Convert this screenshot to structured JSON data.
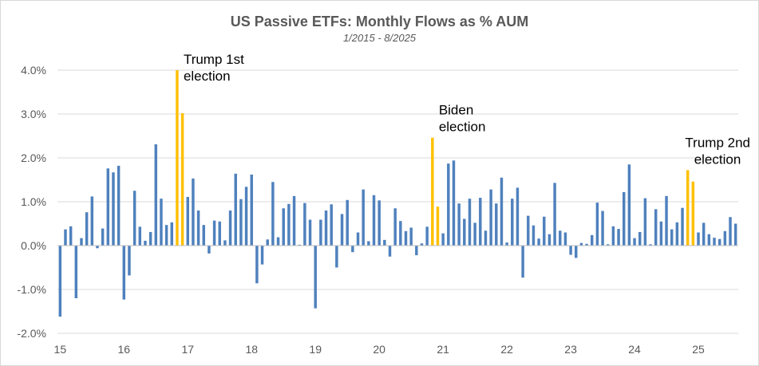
{
  "chart_data": {
    "type": "bar",
    "title": "US Passive ETFs: Monthly Flows as % AUM",
    "subtitle": "1/2015 - 8/2025",
    "xlabel": "",
    "ylabel": "",
    "ylim": [
      -2.0,
      4.0
    ],
    "y_ticks": [
      "-2.0%",
      "-1.0%",
      "0.0%",
      "1.0%",
      "2.0%",
      "3.0%",
      "4.0%"
    ],
    "y_tick_values": [
      -2,
      -1,
      0,
      1,
      2,
      3,
      4
    ],
    "x_tick_labels": [
      "15",
      "16",
      "17",
      "18",
      "19",
      "20",
      "21",
      "22",
      "23",
      "24",
      "25"
    ],
    "grid": true,
    "bar_color": "#4f81bd",
    "highlight_color": "#ffc000",
    "series": [
      {
        "x": [
          "2015-01",
          "2015-02",
          "2015-03",
          "2015-04",
          "2015-05",
          "2015-06",
          "2015-07",
          "2015-08",
          "2015-09",
          "2015-10",
          "2015-11",
          "2015-12",
          "2016-01",
          "2016-02",
          "2016-03",
          "2016-04",
          "2016-05",
          "2016-06",
          "2016-07",
          "2016-08",
          "2016-09",
          "2016-10",
          "2016-11",
          "2016-12",
          "2017-01",
          "2017-02",
          "2017-03",
          "2017-04",
          "2017-05",
          "2017-06",
          "2017-07",
          "2017-08",
          "2017-09",
          "2017-10",
          "2017-11",
          "2017-12",
          "2018-01",
          "2018-02",
          "2018-03",
          "2018-04",
          "2018-05",
          "2018-06",
          "2018-07",
          "2018-08",
          "2018-09",
          "2018-10",
          "2018-11",
          "2018-12",
          "2019-01",
          "2019-02",
          "2019-03",
          "2019-04",
          "2019-05",
          "2019-06",
          "2019-07",
          "2019-08",
          "2019-09",
          "2019-10",
          "2019-11",
          "2019-12",
          "2020-01",
          "2020-02",
          "2020-03",
          "2020-04",
          "2020-05",
          "2020-06",
          "2020-07",
          "2020-08",
          "2020-09",
          "2020-10",
          "2020-11",
          "2020-12",
          "2021-01",
          "2021-02",
          "2021-03",
          "2021-04",
          "2021-05",
          "2021-06",
          "2021-07",
          "2021-08",
          "2021-09",
          "2021-10",
          "2021-11",
          "2021-12",
          "2022-01",
          "2022-02",
          "2022-03",
          "2022-04",
          "2022-05",
          "2022-06",
          "2022-07",
          "2022-08",
          "2022-09",
          "2022-10",
          "2022-11",
          "2022-12",
          "2023-01",
          "2023-02",
          "2023-03",
          "2023-04",
          "2023-05",
          "2023-06",
          "2023-07",
          "2023-08",
          "2023-09",
          "2023-10",
          "2023-11",
          "2023-12",
          "2024-01",
          "2024-02",
          "2024-03",
          "2024-04",
          "2024-05",
          "2024-06",
          "2024-07",
          "2024-08",
          "2024-09",
          "2024-10",
          "2024-11",
          "2024-12",
          "2025-01",
          "2025-02",
          "2025-03",
          "2025-04",
          "2025-05",
          "2025-06",
          "2025-07",
          "2025-08"
        ],
        "values": [
          -1.62,
          0.37,
          0.44,
          -1.2,
          0.17,
          0.76,
          1.12,
          -0.06,
          0.39,
          1.76,
          1.67,
          1.82,
          -1.23,
          -0.68,
          1.25,
          0.43,
          0.11,
          0.31,
          2.31,
          1.07,
          0.47,
          0.53,
          4.0,
          3.02,
          1.11,
          1.53,
          0.8,
          0.47,
          -0.18,
          0.57,
          0.55,
          0.12,
          0.8,
          1.64,
          1.06,
          1.34,
          1.62,
          -0.86,
          -0.43,
          0.14,
          1.45,
          0.19,
          0.85,
          0.95,
          1.13,
          0.02,
          0.97,
          0.59,
          -1.43,
          0.59,
          0.8,
          0.94,
          -0.5,
          0.72,
          1.04,
          -0.15,
          0.3,
          1.28,
          0.1,
          1.15,
          1.03,
          0.13,
          -0.25,
          0.85,
          0.56,
          0.33,
          0.41,
          -0.22,
          0.05,
          0.43,
          2.46,
          0.89,
          0.28,
          1.87,
          1.94,
          0.96,
          0.61,
          1.07,
          0.52,
          1.09,
          0.34,
          1.28,
          0.96,
          1.55,
          0.07,
          1.07,
          1.32,
          -0.73,
          0.68,
          0.46,
          0.16,
          0.66,
          0.26,
          1.43,
          0.34,
          0.3,
          -0.21,
          -0.28,
          0.06,
          0.04,
          0.24,
          0.98,
          0.79,
          0.03,
          0.44,
          0.38,
          1.22,
          1.85,
          0.17,
          0.31,
          1.08,
          0.03,
          0.83,
          0.55,
          1.13,
          0.37,
          0.53,
          0.86,
          1.72,
          1.46,
          0.3,
          0.52,
          0.26,
          0.18,
          0.15,
          0.33,
          0.65,
          0.5
        ],
        "highlight": [
          "2016-11",
          "2016-12",
          "2020-11",
          "2020-12",
          "2024-11",
          "2024-12"
        ]
      }
    ],
    "annotations": [
      {
        "lines": [
          "Trump 1st",
          "election"
        ],
        "month": "2016-11"
      },
      {
        "lines": [
          "Biden",
          "election"
        ],
        "month": "2020-11"
      },
      {
        "lines": [
          "Trump 2nd",
          "election"
        ],
        "month": "2024-11"
      }
    ]
  }
}
